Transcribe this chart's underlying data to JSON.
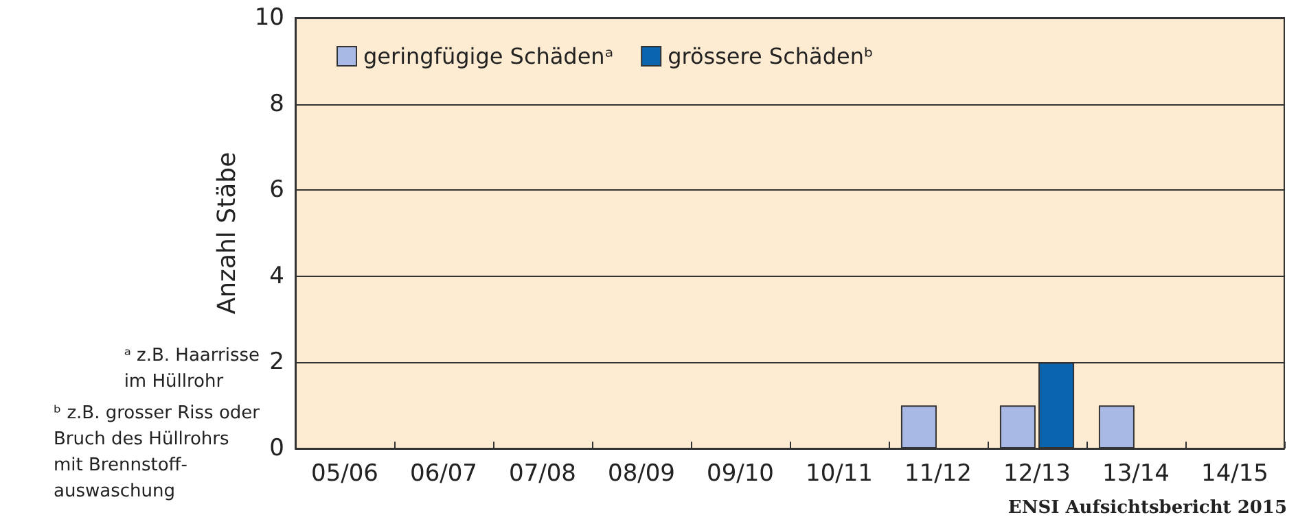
{
  "chart_data": {
    "type": "bar",
    "ylabel": "Anzahl Stäbe",
    "categories": [
      "05/06",
      "06/07",
      "07/08",
      "08/09",
      "09/10",
      "10/11",
      "11/12",
      "12/13",
      "13/14",
      "14/15"
    ],
    "series": [
      {
        "name": "geringfügige Schädenᵃ",
        "color": "#a9b9e6",
        "values": [
          0,
          0,
          0,
          0,
          0,
          0,
          1,
          1,
          1,
          0
        ]
      },
      {
        "name": "grössere Schädenᵇ",
        "color": "#0a64ae",
        "values": [
          0,
          0,
          0,
          0,
          0,
          0,
          0,
          2,
          0,
          0
        ]
      }
    ],
    "ylim": [
      0,
      10
    ],
    "yticks": [
      0,
      2,
      4,
      6,
      8,
      10
    ],
    "grid": "y",
    "legend": "top left",
    "annotations": [
      "ᵃ z.B. Haarrisse\nim Hüllrohr",
      "ᵇ z.B. grosser Riss oder\nBruch des Hüllrohrs\nmit Brennstoff-\nauswaschung",
      "ENSI Aufsichtsbericht 2015"
    ]
  }
}
